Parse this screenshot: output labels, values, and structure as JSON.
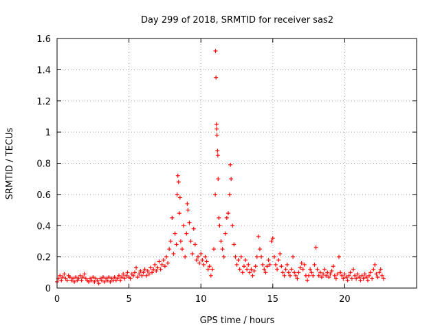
{
  "chart_data": {
    "type": "scatter",
    "title": "Day 299 of 2018, SRMTID for receiver sas2",
    "xlabel": "GPS time / hours",
    "ylabel": "SRMTID / TECUs",
    "xlim": [
      0,
      25
    ],
    "ylim": [
      0,
      1.6
    ],
    "xticks": [
      0,
      5,
      10,
      15,
      20
    ],
    "xtick_labels": [
      "0",
      "5",
      "10",
      "15",
      "20"
    ],
    "yticks": [
      0,
      0.2,
      0.4,
      0.6,
      0.8,
      1,
      1.2,
      1.4,
      1.6
    ],
    "ytick_labels": [
      "0",
      "0.2",
      "0.4",
      "0.6",
      "0.8",
      "1",
      "1.2",
      "1.4",
      "1.6"
    ],
    "grid": true,
    "marker": "+",
    "series": [
      {
        "name": "SRMTID",
        "color": "#ff0000",
        "points": [
          [
            0.0,
            0.04
          ],
          [
            0.1,
            0.06
          ],
          [
            0.2,
            0.08
          ],
          [
            0.3,
            0.05
          ],
          [
            0.4,
            0.07
          ],
          [
            0.5,
            0.09
          ],
          [
            0.6,
            0.06
          ],
          [
            0.7,
            0.05
          ],
          [
            0.8,
            0.08
          ],
          [
            0.9,
            0.07
          ],
          [
            1.0,
            0.05
          ],
          [
            1.1,
            0.06
          ],
          [
            1.2,
            0.04
          ],
          [
            1.3,
            0.07
          ],
          [
            1.4,
            0.05
          ],
          [
            1.5,
            0.06
          ],
          [
            1.6,
            0.08
          ],
          [
            1.7,
            0.05
          ],
          [
            1.8,
            0.07
          ],
          [
            1.9,
            0.09
          ],
          [
            2.0,
            0.06
          ],
          [
            2.1,
            0.05
          ],
          [
            2.2,
            0.04
          ],
          [
            2.3,
            0.06
          ],
          [
            2.4,
            0.05
          ],
          [
            2.5,
            0.07
          ],
          [
            2.6,
            0.04
          ],
          [
            2.7,
            0.06
          ],
          [
            2.8,
            0.05
          ],
          [
            2.9,
            0.03
          ],
          [
            3.0,
            0.06
          ],
          [
            3.1,
            0.05
          ],
          [
            3.2,
            0.07
          ],
          [
            3.3,
            0.04
          ],
          [
            3.4,
            0.06
          ],
          [
            3.5,
            0.05
          ],
          [
            3.6,
            0.07
          ],
          [
            3.7,
            0.04
          ],
          [
            3.8,
            0.06
          ],
          [
            3.9,
            0.05
          ],
          [
            4.0,
            0.07
          ],
          [
            4.1,
            0.05
          ],
          [
            4.2,
            0.06
          ],
          [
            4.3,
            0.08
          ],
          [
            4.4,
            0.05
          ],
          [
            4.5,
            0.07
          ],
          [
            4.6,
            0.09
          ],
          [
            4.7,
            0.06
          ],
          [
            4.8,
            0.08
          ],
          [
            4.9,
            0.1
          ],
          [
            5.0,
            0.07
          ],
          [
            5.1,
            0.06
          ],
          [
            5.2,
            0.09
          ],
          [
            5.3,
            0.08
          ],
          [
            5.4,
            0.1
          ],
          [
            5.5,
            0.13
          ],
          [
            5.6,
            0.07
          ],
          [
            5.7,
            0.09
          ],
          [
            5.8,
            0.11
          ],
          [
            5.9,
            0.08
          ],
          [
            6.0,
            0.1
          ],
          [
            6.1,
            0.12
          ],
          [
            6.2,
            0.08
          ],
          [
            6.3,
            0.11
          ],
          [
            6.4,
            0.09
          ],
          [
            6.5,
            0.13
          ],
          [
            6.6,
            0.1
          ],
          [
            6.7,
            0.12
          ],
          [
            6.8,
            0.15
          ],
          [
            6.9,
            0.11
          ],
          [
            7.0,
            0.13
          ],
          [
            7.1,
            0.17
          ],
          [
            7.2,
            0.12
          ],
          [
            7.3,
            0.15
          ],
          [
            7.4,
            0.18
          ],
          [
            7.5,
            0.14
          ],
          [
            7.6,
            0.2
          ],
          [
            7.7,
            0.16
          ],
          [
            7.8,
            0.25
          ],
          [
            7.9,
            0.3
          ],
          [
            8.0,
            0.45
          ],
          [
            8.1,
            0.22
          ],
          [
            8.2,
            0.35
          ],
          [
            8.3,
            0.28
          ],
          [
            8.35,
            0.6
          ],
          [
            8.4,
            0.72
          ],
          [
            8.45,
            0.68
          ],
          [
            8.5,
            0.48
          ],
          [
            8.55,
            0.58
          ],
          [
            8.6,
            0.3
          ],
          [
            8.7,
            0.25
          ],
          [
            8.8,
            0.4
          ],
          [
            8.9,
            0.2
          ],
          [
            9.0,
            0.35
          ],
          [
            9.05,
            0.54
          ],
          [
            9.1,
            0.5
          ],
          [
            9.2,
            0.42
          ],
          [
            9.3,
            0.3
          ],
          [
            9.4,
            0.22
          ],
          [
            9.5,
            0.38
          ],
          [
            9.6,
            0.28
          ],
          [
            9.7,
            0.18
          ],
          [
            9.8,
            0.2
          ],
          [
            9.9,
            0.16
          ],
          [
            10.0,
            0.22
          ],
          [
            10.1,
            0.18
          ],
          [
            10.2,
            0.15
          ],
          [
            10.3,
            0.2
          ],
          [
            10.4,
            0.17
          ],
          [
            10.5,
            0.12
          ],
          [
            10.6,
            0.14
          ],
          [
            10.7,
            0.08
          ],
          [
            10.8,
            0.12
          ],
          [
            10.9,
            0.25
          ],
          [
            11.0,
            0.6
          ],
          [
            11.02,
            1.52
          ],
          [
            11.05,
            1.35
          ],
          [
            11.08,
            1.05
          ],
          [
            11.1,
            1.02
          ],
          [
            11.12,
            0.98
          ],
          [
            11.15,
            0.88
          ],
          [
            11.18,
            0.85
          ],
          [
            11.2,
            0.7
          ],
          [
            11.25,
            0.45
          ],
          [
            11.3,
            0.4
          ],
          [
            11.4,
            0.3
          ],
          [
            11.5,
            0.25
          ],
          [
            11.6,
            0.2
          ],
          [
            11.7,
            0.35
          ],
          [
            11.8,
            0.45
          ],
          [
            11.9,
            0.48
          ],
          [
            12.0,
            0.6
          ],
          [
            12.05,
            0.79
          ],
          [
            12.1,
            0.7
          ],
          [
            12.2,
            0.4
          ],
          [
            12.3,
            0.28
          ],
          [
            12.4,
            0.2
          ],
          [
            12.5,
            0.15
          ],
          [
            12.6,
            0.18
          ],
          [
            12.7,
            0.12
          ],
          [
            12.8,
            0.2
          ],
          [
            12.9,
            0.1
          ],
          [
            13.0,
            0.14
          ],
          [
            13.1,
            0.18
          ],
          [
            13.2,
            0.12
          ],
          [
            13.3,
            0.15
          ],
          [
            13.4,
            0.1
          ],
          [
            13.5,
            0.12
          ],
          [
            13.6,
            0.08
          ],
          [
            13.7,
            0.11
          ],
          [
            13.8,
            0.14
          ],
          [
            13.9,
            0.2
          ],
          [
            14.0,
            0.33
          ],
          [
            14.1,
            0.25
          ],
          [
            14.2,
            0.2
          ],
          [
            14.3,
            0.15
          ],
          [
            14.4,
            0.12
          ],
          [
            14.5,
            0.1
          ],
          [
            14.6,
            0.14
          ],
          [
            14.7,
            0.18
          ],
          [
            14.8,
            0.15
          ],
          [
            14.9,
            0.3
          ],
          [
            15.0,
            0.32
          ],
          [
            15.1,
            0.2
          ],
          [
            15.2,
            0.15
          ],
          [
            15.3,
            0.12
          ],
          [
            15.4,
            0.18
          ],
          [
            15.5,
            0.22
          ],
          [
            15.6,
            0.14
          ],
          [
            15.7,
            0.1
          ],
          [
            15.8,
            0.08
          ],
          [
            15.9,
            0.12
          ],
          [
            16.0,
            0.15
          ],
          [
            16.1,
            0.1
          ],
          [
            16.2,
            0.08
          ],
          [
            16.3,
            0.12
          ],
          [
            16.4,
            0.2
          ],
          [
            16.5,
            0.1
          ],
          [
            16.6,
            0.08
          ],
          [
            16.7,
            0.06
          ],
          [
            16.8,
            0.1
          ],
          [
            16.9,
            0.13
          ],
          [
            17.0,
            0.16
          ],
          [
            17.1,
            0.12
          ],
          [
            17.2,
            0.15
          ],
          [
            17.3,
            0.08
          ],
          [
            17.4,
            0.05
          ],
          [
            17.5,
            0.08
          ],
          [
            17.6,
            0.12
          ],
          [
            17.7,
            0.1
          ],
          [
            17.8,
            0.08
          ],
          [
            17.9,
            0.15
          ],
          [
            18.0,
            0.26
          ],
          [
            18.1,
            0.12
          ],
          [
            18.2,
            0.08
          ],
          [
            18.3,
            0.1
          ],
          [
            18.4,
            0.07
          ],
          [
            18.5,
            0.09
          ],
          [
            18.6,
            0.12
          ],
          [
            18.7,
            0.08
          ],
          [
            18.8,
            0.1
          ],
          [
            18.9,
            0.07
          ],
          [
            19.0,
            0.09
          ],
          [
            19.1,
            0.11
          ],
          [
            19.2,
            0.14
          ],
          [
            19.3,
            0.08
          ],
          [
            19.4,
            0.06
          ],
          [
            19.5,
            0.09
          ],
          [
            19.6,
            0.2
          ],
          [
            19.7,
            0.1
          ],
          [
            19.8,
            0.08
          ],
          [
            19.9,
            0.06
          ],
          [
            20.0,
            0.09
          ],
          [
            20.1,
            0.07
          ],
          [
            20.2,
            0.05
          ],
          [
            20.3,
            0.08
          ],
          [
            20.4,
            0.1
          ],
          [
            20.5,
            0.06
          ],
          [
            20.6,
            0.12
          ],
          [
            20.7,
            0.08
          ],
          [
            20.8,
            0.06
          ],
          [
            20.9,
            0.09
          ],
          [
            21.0,
            0.07
          ],
          [
            21.1,
            0.05
          ],
          [
            21.2,
            0.08
          ],
          [
            21.3,
            0.06
          ],
          [
            21.4,
            0.09
          ],
          [
            21.5,
            0.07
          ],
          [
            21.6,
            0.05
          ],
          [
            21.7,
            0.08
          ],
          [
            21.8,
            0.1
          ],
          [
            21.9,
            0.06
          ],
          [
            22.0,
            0.12
          ],
          [
            22.1,
            0.15
          ],
          [
            22.2,
            0.09
          ],
          [
            22.3,
            0.07
          ],
          [
            22.4,
            0.1
          ],
          [
            22.5,
            0.12
          ],
          [
            22.6,
            0.08
          ],
          [
            22.7,
            0.06
          ]
        ]
      }
    ]
  }
}
